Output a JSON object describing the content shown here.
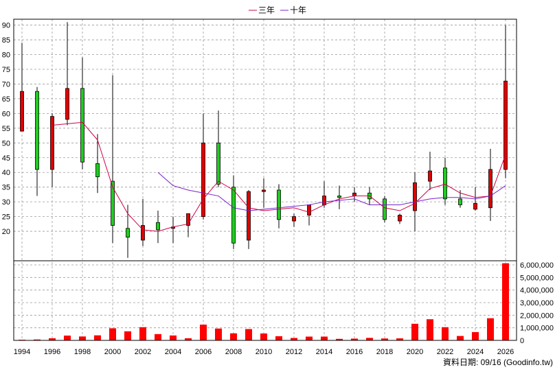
{
  "legend": [
    {
      "label": "三年",
      "color": "#cc0044"
    },
    {
      "label": "十年",
      "color": "#7722cc"
    }
  ],
  "footer": {
    "source": "資料日期: 09/16  (Goodinfo.tw)"
  },
  "colors": {
    "up": "#e00000",
    "down": "#20cc20",
    "ma3": "#cc0044",
    "ma10": "#7722cc",
    "volume": "#ff0000",
    "grid": "#999999"
  },
  "chart_data": {
    "type": "candlestick",
    "x_ticks": [
      "1994",
      "1996",
      "1998",
      "2000",
      "2002",
      "2004",
      "2006",
      "2008",
      "2010",
      "2012",
      "2014",
      "2016",
      "2018",
      "2020",
      "2022",
      "2024",
      "2026"
    ],
    "price_axis": {
      "ylim": [
        10,
        92
      ],
      "ticks": [
        "20",
        "25",
        "30",
        "35",
        "40",
        "45",
        "50",
        "55",
        "60",
        "65",
        "70",
        "75",
        "80",
        "85",
        "90"
      ]
    },
    "volume_axis": {
      "ylim": [
        0,
        6000000
      ],
      "ticks": [
        "0",
        "1,000,000",
        "2,000,000",
        "3,000,000",
        "4,000,000",
        "5,000,000",
        "6,000,000"
      ]
    },
    "candles": [
      {
        "year": 1994,
        "open": 54,
        "high": 84,
        "low": 54,
        "close": 67.5
      },
      {
        "year": 1995,
        "open": 67.5,
        "high": 69,
        "low": 32,
        "close": 41
      },
      {
        "year": 1996,
        "open": 41,
        "high": 60,
        "low": 35,
        "close": 59
      },
      {
        "year": 1997,
        "open": 58,
        "high": 91,
        "low": 56,
        "close": 68.5
      },
      {
        "year": 1998,
        "open": 68.5,
        "high": 79,
        "low": 41,
        "close": 43.5
      },
      {
        "year": 1999,
        "open": 43,
        "high": 53,
        "low": 33,
        "close": 38.5
      },
      {
        "year": 2000,
        "open": 37,
        "high": 73,
        "low": 16,
        "close": 22
      },
      {
        "year": 2001,
        "open": 21,
        "high": 29,
        "low": 11,
        "close": 18
      },
      {
        "year": 2002,
        "open": 17,
        "high": 31,
        "low": 15,
        "close": 22
      },
      {
        "year": 2003,
        "open": 23,
        "high": 27,
        "low": 16,
        "close": 20.5
      },
      {
        "year": 2004,
        "open": 21,
        "high": 25,
        "low": 16,
        "close": 21.5
      },
      {
        "year": 2005,
        "open": 22,
        "high": 26,
        "low": 18,
        "close": 26
      },
      {
        "year": 2006,
        "open": 25,
        "high": 60,
        "low": 24,
        "close": 50
      },
      {
        "year": 2007,
        "open": 50,
        "high": 61,
        "low": 35,
        "close": 36
      },
      {
        "year": 2008,
        "open": 35,
        "high": 39,
        "low": 14,
        "close": 16
      },
      {
        "year": 2009,
        "open": 17,
        "high": 34,
        "low": 14,
        "close": 33.5
      },
      {
        "year": 2010,
        "open": 33.5,
        "high": 38,
        "low": 28,
        "close": 34
      },
      {
        "year": 2011,
        "open": 34,
        "high": 36,
        "low": 21,
        "close": 24
      },
      {
        "year": 2012,
        "open": 23.5,
        "high": 26,
        "low": 21.5,
        "close": 25
      },
      {
        "year": 2013,
        "open": 25.5,
        "high": 29,
        "low": 22,
        "close": 29
      },
      {
        "year": 2014,
        "open": 29,
        "high": 37,
        "low": 28,
        "close": 32
      },
      {
        "year": 2015,
        "open": 32,
        "high": 35.5,
        "low": 27.5,
        "close": 31.5
      },
      {
        "year": 2016,
        "open": 32,
        "high": 35,
        "low": 30,
        "close": 33
      },
      {
        "year": 2017,
        "open": 33,
        "high": 35,
        "low": 29,
        "close": 31
      },
      {
        "year": 2018,
        "open": 31,
        "high": 32,
        "low": 23,
        "close": 24
      },
      {
        "year": 2019,
        "open": 23.5,
        "high": 26,
        "low": 22.5,
        "close": 25.5
      },
      {
        "year": 2020,
        "open": 27,
        "high": 40,
        "low": 20,
        "close": 36.5
      },
      {
        "year": 2021,
        "open": 37,
        "high": 47,
        "low": 34,
        "close": 40.5
      },
      {
        "year": 2022,
        "open": 41.5,
        "high": 45,
        "low": 29,
        "close": 31
      },
      {
        "year": 2023,
        "open": 31,
        "high": 34,
        "low": 28,
        "close": 29
      },
      {
        "year": 2024,
        "open": 27.5,
        "high": 35,
        "low": 27,
        "close": 29.5
      },
      {
        "year": 2025,
        "open": 28,
        "high": 48,
        "low": 23.5,
        "close": 41
      },
      {
        "year": 2026,
        "open": 41,
        "high": 90,
        "low": 38,
        "close": 71
      }
    ],
    "ma3": {
      "x": [
        1996,
        1997,
        1998,
        1999,
        2000,
        2001,
        2002,
        2003,
        2004,
        2005,
        2006,
        2007,
        2008,
        2009,
        2010,
        2011,
        2012,
        2013,
        2014,
        2015,
        2016,
        2017,
        2018,
        2019,
        2020,
        2021,
        2022,
        2023,
        2024,
        2025,
        2026
      ],
      "y": [
        56,
        56.5,
        57,
        51,
        35,
        26,
        20.5,
        20,
        21.5,
        22.5,
        31,
        37,
        34,
        28,
        27,
        27.5,
        28,
        26.5,
        29,
        31,
        32,
        32,
        28,
        27,
        29.5,
        34.5,
        36,
        33,
        31.5,
        32,
        46
      ]
    },
    "ma10": {
      "x": [
        2003,
        2004,
        2005,
        2006,
        2007,
        2008,
        2009,
        2010,
        2011,
        2012,
        2013,
        2014,
        2015,
        2016,
        2017,
        2018,
        2019,
        2020,
        2021,
        2022,
        2023,
        2024,
        2025,
        2026
      ],
      "y": [
        40,
        35.5,
        34,
        33,
        32,
        28,
        27,
        27.5,
        28,
        28.5,
        29,
        30,
        30.5,
        31,
        29,
        29,
        29,
        30,
        31,
        31.5,
        31.5,
        31,
        32,
        35.5
      ]
    },
    "volume": {
      "x": [
        1994,
        1995,
        1996,
        1997,
        1998,
        1999,
        2000,
        2001,
        2002,
        2003,
        2004,
        2005,
        2006,
        2007,
        2008,
        2009,
        2010,
        2011,
        2012,
        2013,
        2014,
        2015,
        2016,
        2017,
        2018,
        2019,
        2020,
        2021,
        2022,
        2023,
        2024,
        2025,
        2026
      ],
      "y": [
        50000,
        70000,
        170000,
        380000,
        310000,
        400000,
        960000,
        720000,
        1050000,
        500000,
        390000,
        170000,
        1250000,
        940000,
        560000,
        900000,
        550000,
        330000,
        190000,
        300000,
        300000,
        120000,
        140000,
        200000,
        150000,
        160000,
        1320000,
        1680000,
        1050000,
        350000,
        660000,
        1760000,
        6130000
      ]
    }
  }
}
